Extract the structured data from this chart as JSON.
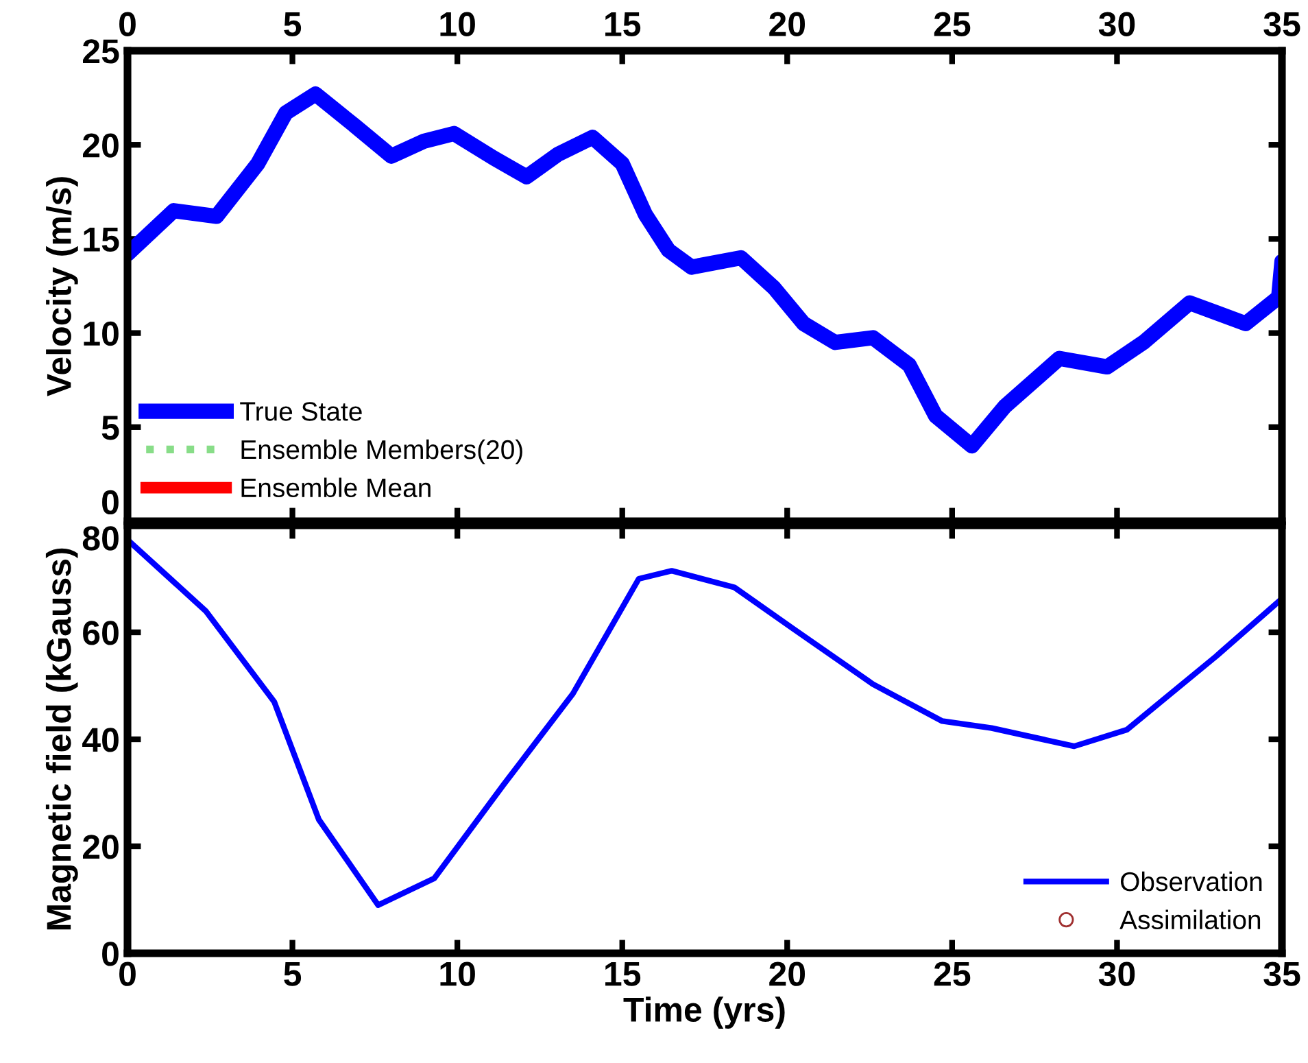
{
  "chart_data": [
    {
      "type": "line",
      "ylabel": "Velocity (m/s)",
      "xlim": [
        0,
        35
      ],
      "xticks": [
        0,
        5,
        10,
        15,
        20,
        25,
        30,
        35
      ],
      "tick_labels": "y",
      "x2lim": [
        0,
        35
      ],
      "x2ticks": [
        0,
        5,
        10,
        15,
        20,
        25,
        30,
        35
      ],
      "ylim": [
        0,
        25
      ],
      "yticks": [
        0,
        5,
        10,
        15,
        20,
        25
      ],
      "legend": "bottom left",
      "grid": false,
      "x": [
        0,
        1.4,
        2.7,
        3.95,
        4.8,
        5.7,
        6.9,
        8.0,
        9.0,
        9.9,
        11.1,
        12.1,
        13.05,
        14.1,
        15.0,
        15.7,
        16.4,
        17.1,
        18.6,
        19.6,
        20.5,
        21.45,
        22.6,
        23.7,
        24.5,
        25.6,
        26.6,
        28.25,
        29.7,
        30.8,
        32.2,
        33.9,
        34.9,
        35
      ],
      "series": [
        {
          "name": "True State",
          "color": "#0000ff",
          "line_style": "solid",
          "values": [
            14.2,
            16.5,
            16.2,
            19.0,
            21.7,
            22.7,
            21.0,
            19.4,
            20.2,
            20.6,
            19.3,
            18.3,
            19.5,
            20.4,
            19.0,
            16.3,
            14.4,
            13.5,
            14.0,
            12.4,
            10.5,
            9.5,
            9.75,
            8.3,
            5.6,
            4.0,
            6.1,
            8.65,
            8.2,
            9.5,
            11.6,
            10.5,
            11.9,
            13.8
          ]
        },
        {
          "name": "Ensemble Members(20)",
          "color": "#88dd88",
          "line_style": "dotted",
          "values": [
            null,
            null,
            null,
            null,
            null,
            null,
            null,
            null,
            null,
            null,
            null,
            null,
            null,
            null,
            null,
            null,
            null,
            null,
            null,
            null,
            null,
            null,
            null,
            null,
            null,
            null,
            null,
            null,
            null,
            null,
            null,
            null,
            null,
            null
          ]
        },
        {
          "name": "Ensemble Mean",
          "color": "#ff0000",
          "line_style": "solid",
          "values": [
            null,
            null,
            null,
            null,
            null,
            null,
            null,
            null,
            null,
            null,
            null,
            null,
            null,
            null,
            null,
            null,
            null,
            null,
            null,
            null,
            null,
            null,
            null,
            null,
            null,
            null,
            null,
            null,
            null,
            null,
            null,
            null,
            null,
            null
          ]
        }
      ]
    },
    {
      "type": "line",
      "ylabel": "Magnetic field (kGauss)",
      "xlabel": "Time (yrs)",
      "xlim": [
        0,
        35
      ],
      "xticks": [
        0,
        5,
        10,
        15,
        20,
        25,
        30,
        35
      ],
      "ylim": [
        0,
        80
      ],
      "yticks": [
        0,
        20,
        40,
        60,
        80
      ],
      "legend": "bottom right",
      "grid": false,
      "x": [
        0,
        2.37,
        4.45,
        5.8,
        7.6,
        9.3,
        11.4,
        13.5,
        15.5,
        16.5,
        18.4,
        20.2,
        22.6,
        24.7,
        26.2,
        28.7,
        30.3,
        33,
        35
      ],
      "series": [
        {
          "name": "Observation",
          "color": "#0000ff",
          "type": "line",
          "line_style": "solid",
          "values": [
            77.3,
            64,
            47,
            25,
            9,
            14,
            31.5,
            48.5,
            70,
            71.5,
            68.4,
            60.6,
            50.3,
            43.4,
            42.1,
            38.7,
            41.8,
            55.5,
            66.3
          ]
        },
        {
          "name": "Assimilation",
          "color": "#a03030",
          "type": "scatter",
          "marker": "circle",
          "values": [
            null,
            null,
            null,
            null,
            null,
            null,
            null,
            null,
            null,
            null,
            null,
            null,
            null,
            null,
            null,
            null,
            null,
            null,
            null
          ]
        }
      ]
    }
  ]
}
